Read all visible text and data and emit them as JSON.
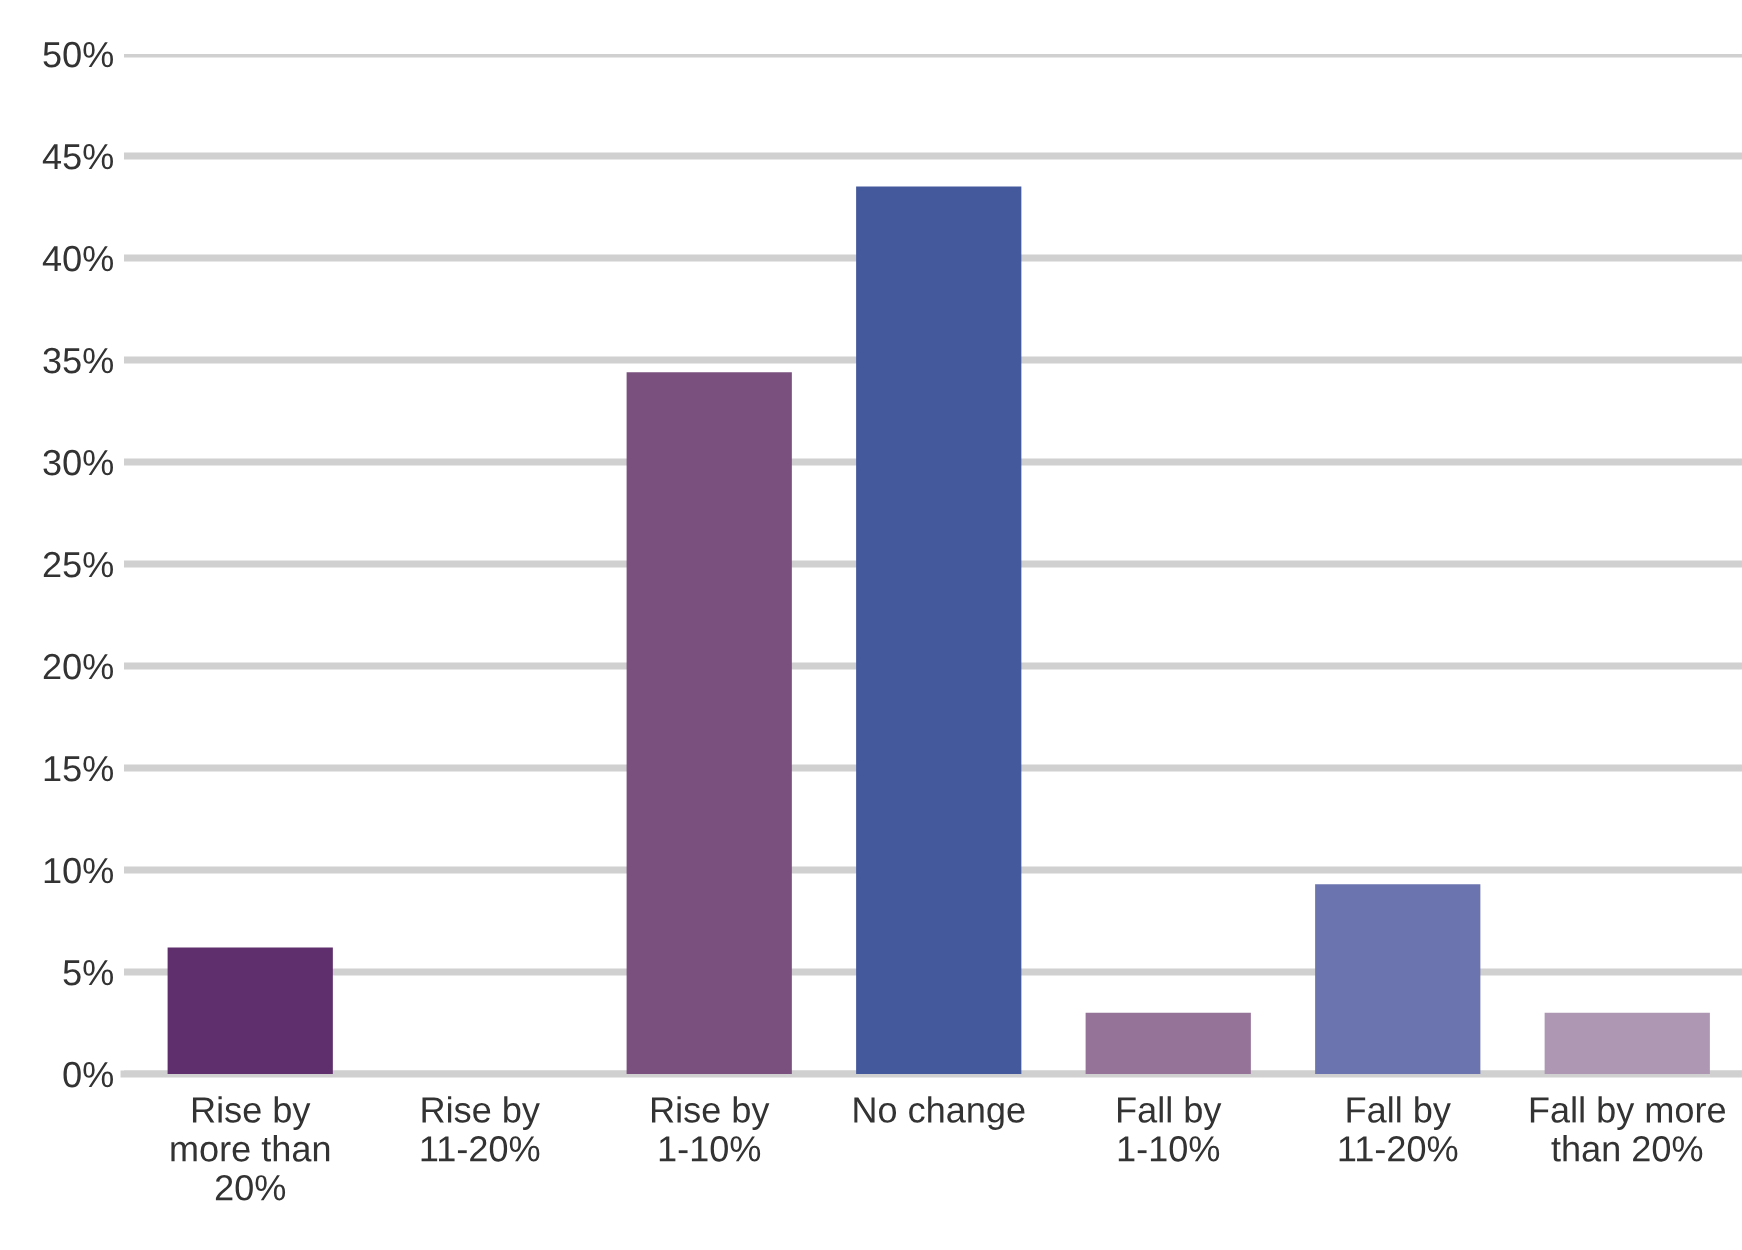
{
  "chart_data": {
    "type": "bar",
    "categories": [
      "Rise by\nmore than\n20%",
      "Rise by\n11-20%",
      "Rise by\n1-10%",
      "No change",
      "Fall by\n1-10%",
      "Fall by\n11-20%",
      "Fall by more\nthan 20%"
    ],
    "values": [
      6.2,
      0,
      34.4,
      43.5,
      3.0,
      9.3,
      3.0
    ],
    "colors": [
      "#5e2f6c",
      "#6a3f73",
      "#7a507e",
      "#44599b",
      "#957398",
      "#6b74ae",
      "#ae97b3"
    ],
    "ylim": [
      0,
      50
    ],
    "yticks": [
      {
        "value": 0,
        "label": "0%"
      },
      {
        "value": 5,
        "label": "5%"
      },
      {
        "value": 10,
        "label": "10%"
      },
      {
        "value": 15,
        "label": "15%"
      },
      {
        "value": 20,
        "label": "20%"
      },
      {
        "value": 25,
        "label": "25%"
      },
      {
        "value": 30,
        "label": "30%"
      },
      {
        "value": 35,
        "label": "35%"
      },
      {
        "value": 40,
        "label": "40%"
      },
      {
        "value": 45,
        "label": "45%"
      },
      {
        "value": 50,
        "label": "50%"
      }
    ],
    "grid": "y"
  }
}
